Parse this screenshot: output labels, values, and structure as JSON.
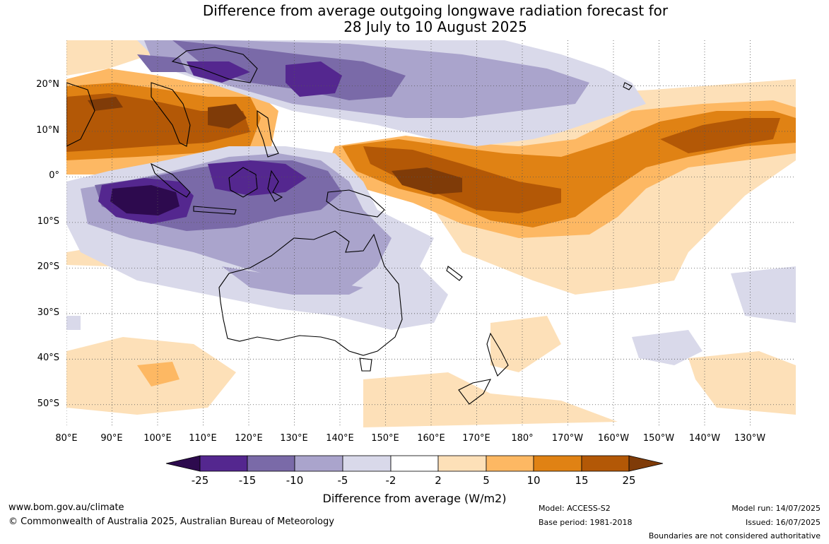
{
  "title": {
    "line1": "Difference from average outgoing longwave radiation forecast for",
    "line2": "28 July to 10 August 2025"
  },
  "map": {
    "lat_labels": [
      "20°N",
      "10°N",
      "0°",
      "10°S",
      "20°S",
      "30°S",
      "40°S",
      "50°S"
    ],
    "lon_labels": [
      "80°E",
      "90°E",
      "100°E",
      "110°E",
      "120°E",
      "130°E",
      "140°E",
      "150°E",
      "160°E",
      "170°E",
      "180°",
      "170°W",
      "160°W",
      "150°W",
      "140°W",
      "130°W"
    ],
    "lat_range": [
      -55,
      30
    ],
    "lon_range": [
      80,
      240
    ],
    "regions": [
      {
        "name": "Bay of Bengal to South China Sea",
        "anomaly_class": "15 to 25"
      },
      {
        "name": "Northwest Pacific near 10°N",
        "anomaly_class": "10 to 15"
      },
      {
        "name": "Equatorial west Pacific, Papua New Guinea to 180°",
        "anomaly_class": "15 to 25"
      },
      {
        "name": "Eastern Indian Ocean near Sumatra/Java",
        "anomaly_class": "below -25"
      },
      {
        "name": "Maritime Continent",
        "anomaly_class": "-25 to -15"
      },
      {
        "name": "Philippine Sea near 20°N",
        "anomaly_class": "-25 to -15"
      },
      {
        "name": "Northern and western Australia",
        "anomaly_class": "-10 to -5"
      }
    ]
  },
  "colorbar": {
    "ticks": [
      "-25",
      "-15",
      "-10",
      "-5",
      "-2",
      "2",
      "5",
      "10",
      "15",
      "25"
    ],
    "colors": [
      "#2d0a4e",
      "#54278f",
      "#7a6aa8",
      "#aaa4cc",
      "#d9d9ea",
      "#ffffff",
      "#fde0b8",
      "#fdb863",
      "#e08214",
      "#b35806",
      "#7f3b08"
    ],
    "label": "Difference from average (W/m2)"
  },
  "footer": {
    "url": "www.bom.gov.au/climate",
    "copyright": "© Commonwealth of Australia 2025, Australian Bureau of Meteorology",
    "model": "Model: ACCESS-S2",
    "base_period": "Base period: 1981-2018",
    "model_run": "Model run: 14/07/2025",
    "issued": "Issued: 16/07/2025",
    "disclaimer": "Boundaries are not considered authoritative"
  }
}
